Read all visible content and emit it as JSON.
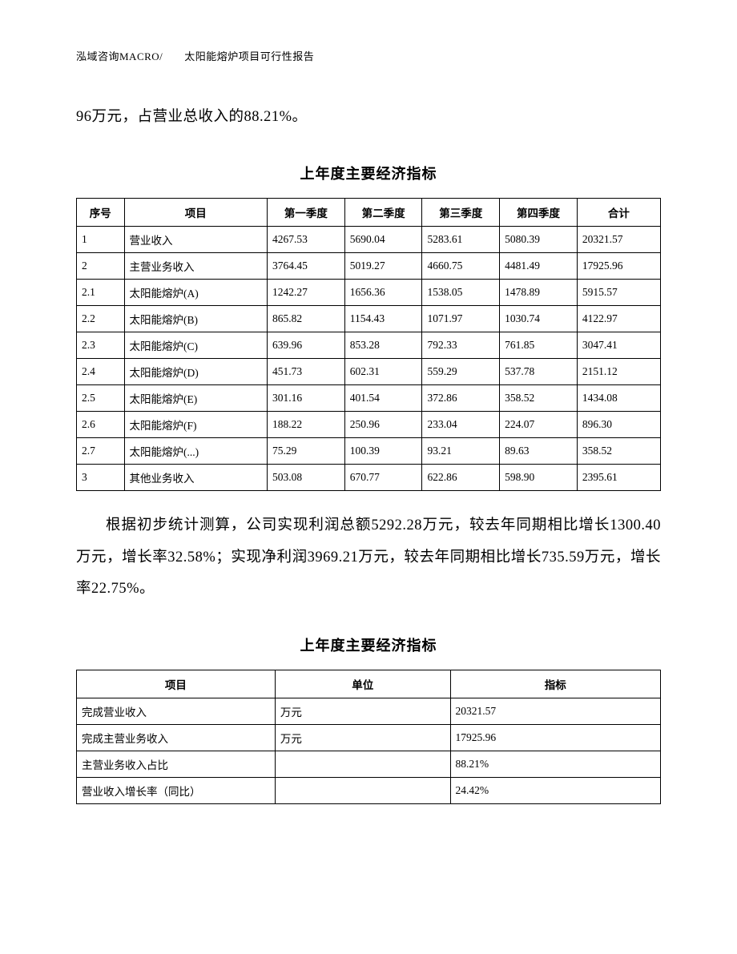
{
  "header": "泓域咨询MACRO/　　太阳能熔炉项目可行性报告",
  "para1": "96万元，占营业总收入的88.21%。",
  "para2": "根据初步统计测算，公司实现利润总额5292.28万元，较去年同期相比增长1300.40万元，增长率32.58%；实现净利润3969.21万元，较去年同期相比增长735.59万元，增长率22.75%。",
  "table1": {
    "title": "上年度主要经济指标",
    "headers": [
      "序号",
      "项目",
      "第一季度",
      "第二季度",
      "第三季度",
      "第四季度",
      "合计"
    ],
    "rows": [
      [
        "1",
        "营业收入",
        "4267.53",
        "5690.04",
        "5283.61",
        "5080.39",
        "20321.57"
      ],
      [
        "2",
        "主营业务收入",
        "3764.45",
        "5019.27",
        "4660.75",
        "4481.49",
        "17925.96"
      ],
      [
        "2.1",
        "太阳能熔炉(A)",
        "1242.27",
        "1656.36",
        "1538.05",
        "1478.89",
        "5915.57"
      ],
      [
        "2.2",
        "太阳能熔炉(B)",
        "865.82",
        "1154.43",
        "1071.97",
        "1030.74",
        "4122.97"
      ],
      [
        "2.3",
        "太阳能熔炉(C)",
        "639.96",
        "853.28",
        "792.33",
        "761.85",
        "3047.41"
      ],
      [
        "2.4",
        "太阳能熔炉(D)",
        "451.73",
        "602.31",
        "559.29",
        "537.78",
        "2151.12"
      ],
      [
        "2.5",
        "太阳能熔炉(E)",
        "301.16",
        "401.54",
        "372.86",
        "358.52",
        "1434.08"
      ],
      [
        "2.6",
        "太阳能熔炉(F)",
        "188.22",
        "250.96",
        "233.04",
        "224.07",
        "896.30"
      ],
      [
        "2.7",
        "太阳能熔炉(...)",
        "75.29",
        "100.39",
        "93.21",
        "89.63",
        "358.52"
      ],
      [
        "3",
        "其他业务收入",
        "503.08",
        "670.77",
        "622.86",
        "598.90",
        "2395.61"
      ]
    ]
  },
  "table2": {
    "title": "上年度主要经济指标",
    "headers": [
      "项目",
      "单位",
      "指标"
    ],
    "rows": [
      [
        "完成营业收入",
        "万元",
        "20321.57"
      ],
      [
        "完成主营业务收入",
        "万元",
        "17925.96"
      ],
      [
        "主营业务收入占比",
        "",
        "88.21%"
      ],
      [
        "营业收入增长率（同比）",
        "",
        "24.42%"
      ]
    ]
  }
}
